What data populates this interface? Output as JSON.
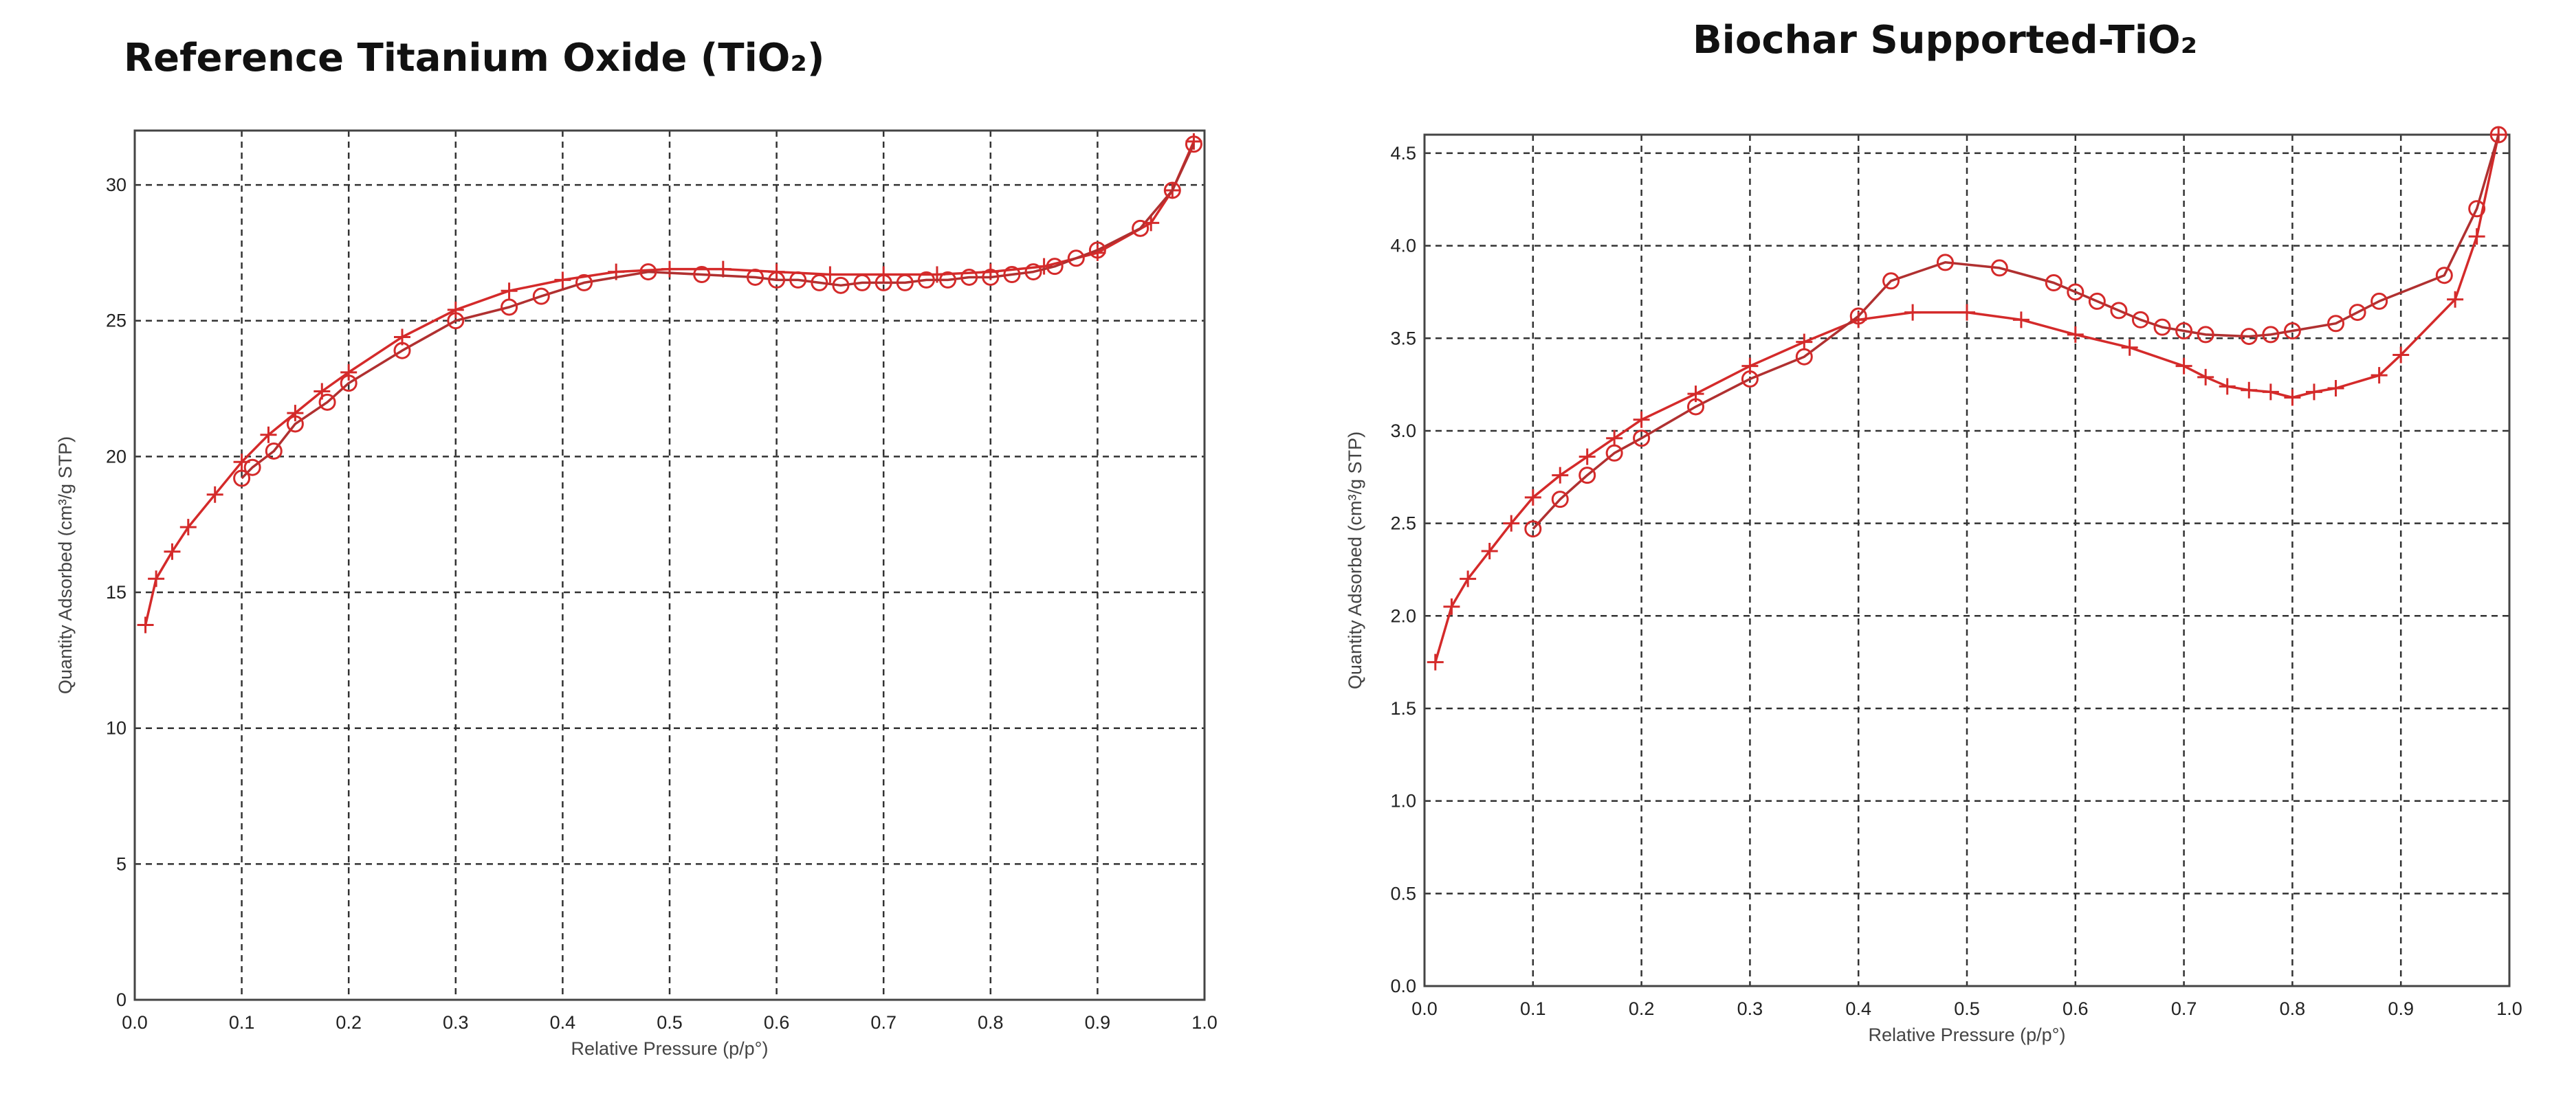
{
  "chart_data": [
    {
      "type": "line",
      "title": "Reference Titanium Oxide (TiO₂)",
      "xlabel": "Relative Pressure (p/p°)",
      "ylabel": "Quantity Adsorbed (cm³/g STP)",
      "xlim": [
        0.0,
        1.0
      ],
      "ylim": [
        0,
        32
      ],
      "xticks": [
        0.0,
        0.1,
        0.2,
        0.3,
        0.4,
        0.5,
        0.6,
        0.7,
        0.8,
        0.9,
        1.0
      ],
      "xtick_labels": [
        "0.0",
        "0.1",
        "0.2",
        "0.3",
        "0.4",
        "0.5",
        "0.6",
        "0.7",
        "0.8",
        "0.9",
        "1.0"
      ],
      "yticks": [
        0,
        5,
        10,
        15,
        20,
        25,
        30
      ],
      "ytick_labels": [
        "0",
        "5",
        "10",
        "15",
        "20",
        "25",
        "30"
      ],
      "grid": true,
      "colors": {
        "series": "#d42a2a",
        "line": "#b03030"
      },
      "series": [
        {
          "marker": "plus",
          "x": [
            0.01,
            0.02,
            0.035,
            0.05,
            0.075,
            0.1,
            0.125,
            0.15,
            0.175,
            0.2,
            0.25,
            0.3,
            0.35,
            0.4,
            0.45,
            0.5,
            0.55,
            0.6,
            0.65,
            0.7,
            0.75,
            0.8,
            0.85,
            0.9,
            0.95,
            0.97,
            0.99
          ],
          "y": [
            13.8,
            15.5,
            16.5,
            17.4,
            18.6,
            19.8,
            20.8,
            21.6,
            22.4,
            23.1,
            24.4,
            25.4,
            26.1,
            26.5,
            26.8,
            26.9,
            26.9,
            26.8,
            26.7,
            26.7,
            26.7,
            26.8,
            27.0,
            27.5,
            28.6,
            29.8,
            31.6
          ]
        },
        {
          "marker": "circle",
          "x": [
            0.99,
            0.97,
            0.94,
            0.9,
            0.88,
            0.86,
            0.84,
            0.82,
            0.8,
            0.78,
            0.76,
            0.74,
            0.72,
            0.7,
            0.68,
            0.66,
            0.64,
            0.62,
            0.6,
            0.58,
            0.53,
            0.48,
            0.42,
            0.38,
            0.35,
            0.3,
            0.25,
            0.2,
            0.18,
            0.15,
            0.13,
            0.11,
            0.1
          ],
          "y": [
            31.5,
            29.8,
            28.4,
            27.6,
            27.3,
            27.0,
            26.8,
            26.7,
            26.6,
            26.6,
            26.5,
            26.5,
            26.4,
            26.4,
            26.4,
            26.3,
            26.4,
            26.5,
            26.5,
            26.6,
            26.7,
            26.8,
            26.4,
            25.9,
            25.5,
            25.0,
            23.9,
            22.7,
            22.0,
            21.2,
            20.2,
            19.6,
            19.2
          ]
        }
      ]
    },
    {
      "type": "line",
      "title": "Biochar Supported-TiO₂",
      "xlabel": "Relative Pressure (p/p°)",
      "ylabel": "Quantity Adsorbed (cm³/g STP)",
      "xlim": [
        0.0,
        1.0
      ],
      "ylim": [
        0.0,
        4.6
      ],
      "xticks": [
        0.0,
        0.1,
        0.2,
        0.3,
        0.4,
        0.5,
        0.6,
        0.7,
        0.8,
        0.9,
        1.0
      ],
      "xtick_labels": [
        "0.0",
        "0.1",
        "0.2",
        "0.3",
        "0.4",
        "0.5",
        "0.6",
        "0.7",
        "0.8",
        "0.9",
        "1.0"
      ],
      "yticks": [
        0.0,
        0.5,
        1.0,
        1.5,
        2.0,
        2.5,
        3.0,
        3.5,
        4.0,
        4.5
      ],
      "ytick_labels": [
        "0.0",
        "0.5",
        "1.0",
        "1.5",
        "2.0",
        "2.5",
        "3.0",
        "3.5",
        "4.0",
        "4.5"
      ],
      "grid": true,
      "colors": {
        "series": "#d42a2a",
        "line": "#b03030"
      },
      "series": [
        {
          "marker": "plus",
          "x": [
            0.01,
            0.025,
            0.04,
            0.06,
            0.08,
            0.1,
            0.125,
            0.15,
            0.175,
            0.2,
            0.25,
            0.3,
            0.35,
            0.4,
            0.45,
            0.5,
            0.55,
            0.6,
            0.65,
            0.7,
            0.72,
            0.74,
            0.76,
            0.78,
            0.8,
            0.82,
            0.84,
            0.88,
            0.9,
            0.95,
            0.97,
            0.99
          ],
          "y": [
            1.75,
            2.05,
            2.2,
            2.35,
            2.5,
            2.64,
            2.76,
            2.86,
            2.96,
            3.06,
            3.2,
            3.35,
            3.48,
            3.6,
            3.64,
            3.64,
            3.6,
            3.52,
            3.45,
            3.35,
            3.29,
            3.24,
            3.22,
            3.21,
            3.18,
            3.21,
            3.23,
            3.3,
            3.41,
            3.71,
            4.05,
            4.6
          ]
        },
        {
          "marker": "circle",
          "x": [
            0.99,
            0.97,
            0.94,
            0.88,
            0.86,
            0.84,
            0.8,
            0.78,
            0.76,
            0.72,
            0.7,
            0.68,
            0.66,
            0.64,
            0.62,
            0.6,
            0.58,
            0.53,
            0.48,
            0.43,
            0.4,
            0.35,
            0.3,
            0.25,
            0.2,
            0.175,
            0.15,
            0.125,
            0.1
          ],
          "y": [
            4.6,
            4.2,
            3.84,
            3.7,
            3.64,
            3.58,
            3.54,
            3.52,
            3.51,
            3.52,
            3.54,
            3.56,
            3.6,
            3.65,
            3.7,
            3.75,
            3.8,
            3.88,
            3.91,
            3.81,
            3.62,
            3.4,
            3.28,
            3.13,
            2.96,
            2.88,
            2.76,
            2.63,
            2.47
          ]
        }
      ]
    }
  ]
}
